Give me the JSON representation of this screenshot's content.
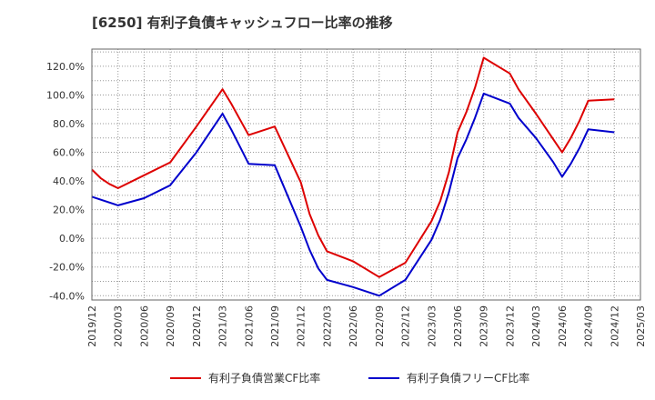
{
  "chart_data": {
    "type": "line",
    "title": "[6250]  有利子負債キャッシュフロー比率の推移",
    "xlabel": "",
    "ylabel": "",
    "ylim": [
      -43,
      132
    ],
    "y_ticks": [
      -40,
      -20,
      0,
      20,
      40,
      60,
      80,
      100,
      120
    ],
    "y_tick_labels": [
      "-40.0%",
      "-20.0%",
      "0.0%",
      "20.0%",
      "40.0%",
      "60.0%",
      "80.0%",
      "100.0%",
      "120.0%"
    ],
    "x_ticks": [
      "2019-12",
      "2020-03",
      "2020-06",
      "2020-09",
      "2020-12",
      "2021-03",
      "2021-06",
      "2021-09",
      "2021-12",
      "2022-03",
      "2022-06",
      "2022-09",
      "2022-12",
      "2023-03",
      "2023-06",
      "2023-09",
      "2023-12",
      "2024-03",
      "2024-06",
      "2024-09",
      "2024-12",
      "2025-03"
    ],
    "x_tick_labels": [
      "2019/12",
      "2020/03",
      "2020/06",
      "2020/09",
      "2020/12",
      "2021/03",
      "2021/06",
      "2021/09",
      "2021/12",
      "2022/03",
      "2022/06",
      "2022/09",
      "2022/12",
      "2023/03",
      "2023/06",
      "2023/09",
      "2023/12",
      "2024/03",
      "2024/06",
      "2024/09",
      "2024/12",
      "2025/03"
    ],
    "grid": true,
    "legend_position": "bottom",
    "series": [
      {
        "name": "有利子負債営業CF比率",
        "color": "#dd0000",
        "points": [
          [
            "2019-12",
            48
          ],
          [
            "2020-01",
            42
          ],
          [
            "2020-02",
            38
          ],
          [
            "2020-03",
            35
          ],
          [
            "2020-06",
            44
          ],
          [
            "2020-09",
            53
          ],
          [
            "2020-12",
            78
          ],
          [
            "2021-03",
            104
          ],
          [
            "2021-04",
            94
          ],
          [
            "2021-05",
            83
          ],
          [
            "2021-06",
            72
          ],
          [
            "2021-09",
            78
          ],
          [
            "2021-12",
            39
          ],
          [
            "2022-01",
            17
          ],
          [
            "2022-02",
            2
          ],
          [
            "2022-03",
            -9
          ],
          [
            "2022-06",
            -16
          ],
          [
            "2022-09",
            -27
          ],
          [
            "2022-12",
            -17
          ],
          [
            "2023-03",
            12
          ],
          [
            "2023-04",
            26
          ],
          [
            "2023-05",
            46
          ],
          [
            "2023-06",
            74
          ],
          [
            "2023-07",
            88
          ],
          [
            "2023-08",
            105
          ],
          [
            "2023-09",
            126
          ],
          [
            "2023-12",
            115
          ],
          [
            "2024-01",
            104
          ],
          [
            "2024-03",
            87
          ],
          [
            "2024-06",
            60
          ],
          [
            "2024-07",
            70
          ],
          [
            "2024-08",
            82
          ],
          [
            "2024-09",
            96
          ],
          [
            "2024-12",
            97
          ]
        ]
      },
      {
        "name": "有利子負債フリーCF比率",
        "color": "#0000cc",
        "points": [
          [
            "2019-12",
            29
          ],
          [
            "2020-03",
            23
          ],
          [
            "2020-06",
            28
          ],
          [
            "2020-09",
            37
          ],
          [
            "2020-12",
            60
          ],
          [
            "2021-03",
            87
          ],
          [
            "2021-04",
            76
          ],
          [
            "2021-05",
            64
          ],
          [
            "2021-06",
            52
          ],
          [
            "2021-09",
            51
          ],
          [
            "2021-12",
            8
          ],
          [
            "2022-01",
            -8
          ],
          [
            "2022-02",
            -21
          ],
          [
            "2022-03",
            -29
          ],
          [
            "2022-06",
            -34
          ],
          [
            "2022-09",
            -40
          ],
          [
            "2022-12",
            -29
          ],
          [
            "2023-03",
            -1
          ],
          [
            "2023-04",
            13
          ],
          [
            "2023-05",
            32
          ],
          [
            "2023-06",
            56
          ],
          [
            "2023-07",
            69
          ],
          [
            "2023-08",
            84
          ],
          [
            "2023-09",
            101
          ],
          [
            "2023-12",
            94
          ],
          [
            "2024-01",
            84
          ],
          [
            "2024-03",
            70
          ],
          [
            "2024-05",
            53
          ],
          [
            "2024-06",
            43
          ],
          [
            "2024-07",
            52
          ],
          [
            "2024-08",
            63
          ],
          [
            "2024-09",
            76
          ],
          [
            "2024-12",
            74
          ]
        ]
      }
    ]
  }
}
